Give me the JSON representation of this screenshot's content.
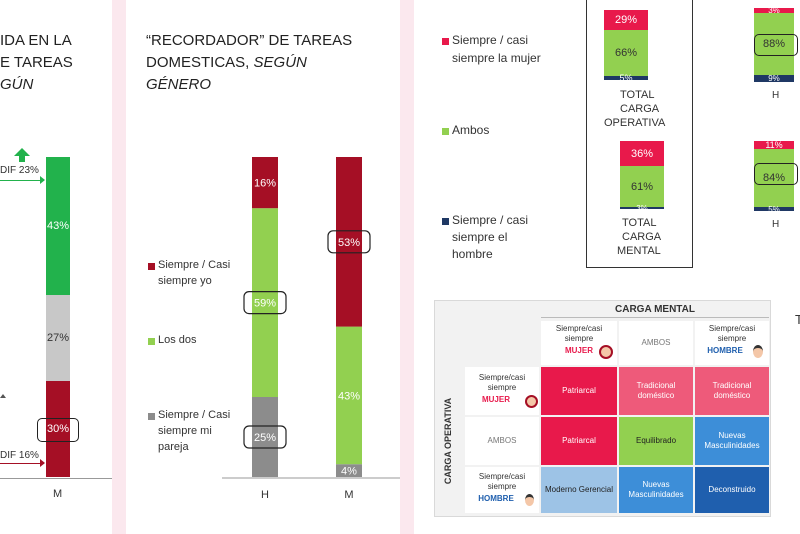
{
  "panel1": {
    "title_l1": "IDA EN LA",
    "title_l2": "E TAREAS",
    "title_l3": "GÚN",
    "dif_top": "DIF 23%",
    "dif_bottom": "DIF 16%",
    "bar_labels": [
      "43%",
      "27%",
      "30%"
    ],
    "x_label": "M"
  },
  "panel2": {
    "title_l1": "“RECORDADOR” DE TAREAS",
    "title_l2": "DOMESTICAS, ",
    "title_l2_italic": "SEGÚN",
    "title_l3": "GÉNERO",
    "legend": [
      {
        "label_l1": "Siempre / Casi",
        "label_l2": "siempre yo",
        "label_l3": "",
        "color": "#a50f25"
      },
      {
        "label_l1": "Los dos",
        "label_l2": "",
        "label_l3": "",
        "color": "#92d050"
      },
      {
        "label_l1": "Siempre / Casi",
        "label_l2": "siempre mi",
        "label_l3": "pareja",
        "color": "#8c8c8c"
      }
    ],
    "chart_data": {
      "type": "bar",
      "stacked": true,
      "categories": [
        "H",
        "M"
      ],
      "series": [
        {
          "name": "Siempre / Casi siempre mi pareja",
          "values": [
            25,
            4
          ],
          "labels": [
            "25%",
            "4%"
          ]
        },
        {
          "name": "Los dos",
          "values": [
            59,
            43
          ],
          "labels": [
            "59%",
            "43%"
          ]
        },
        {
          "name": "Siempre / Casi siempre yo",
          "values": [
            16,
            53
          ],
          "labels": [
            "16%",
            "53%"
          ]
        }
      ]
    }
  },
  "panel3": {
    "legend": [
      {
        "label_l1": "Siempre / casi",
        "label_l2": "siempre la mujer",
        "color": "#e8194b"
      },
      {
        "label_l1": "Ambos",
        "label_l2": "",
        "color": "#92d050"
      },
      {
        "label_l1": "Siempre / casi",
        "label_l2": "siempre el",
        "label_l3": "hombre",
        "color": "#1f3864"
      }
    ],
    "total_operativa": {
      "labels": [
        "29%",
        "66%",
        "5%"
      ],
      "caption_l1": "TOTAL",
      "caption_l2": "CARGA",
      "caption_l3": "OPERATIVA"
    },
    "total_mental": {
      "labels": [
        "36%",
        "61%",
        "3%"
      ],
      "caption_l1": "TOTAL",
      "caption_l2": "CARGA",
      "caption_l3": "MENTAL"
    },
    "mini_top": {
      "labels": [
        "3%",
        "88%",
        "9%"
      ],
      "caption": "H"
    },
    "mini_bottom": {
      "labels": [
        "11%",
        "84%",
        "5%"
      ],
      "caption": "H"
    },
    "edge_letter": "T",
    "matrix": {
      "col_header": "CARGA MENTAL",
      "row_header": "CARGA OPERATIVA",
      "col_mujer_l1": "Siempre/casi",
      "col_mujer_l2": "siempre",
      "col_mujer_l3": "MUJER",
      "col_ambos": "AMBOS",
      "col_hombre_l1": "Siempre/casi",
      "col_hombre_l2": "siempre",
      "col_hombre_l3": "HOMBRE",
      "row_mujer_l1": "Siempre/casi",
      "row_mujer_l2": "siempre",
      "row_mujer_l3": "MUJER",
      "row_ambos": "AMBOS",
      "row_hombre_l1": "Siempre/casi",
      "row_hombre_l2": "siempre",
      "row_hombre_l3": "HOMBRE",
      "cells": [
        [
          "Patriarcal",
          "Tradicional doméstico",
          "Tradicional doméstico"
        ],
        [
          "Patriarcal",
          "Equilibrado",
          "Nuevas Masculinidades"
        ],
        [
          "Moderno Gerencial",
          "Nuevas Masculinidades",
          "Deconstruido"
        ]
      ],
      "colors": [
        [
          "#e8194b",
          "#ee5a7a",
          "#ee5a7a"
        ],
        [
          "#e8194b",
          "#92d050",
          "#3d8ed8"
        ],
        [
          "#9dc3e6",
          "#3d8ed8",
          "#1f5fae"
        ]
      ]
    }
  }
}
